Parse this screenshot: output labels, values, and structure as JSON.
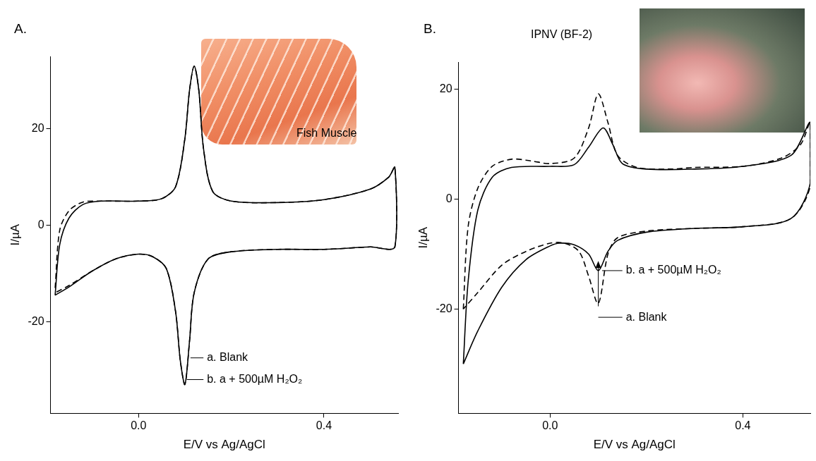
{
  "chart_data": [
    {
      "type": "line",
      "panel_label": "A.",
      "image_caption": "Fish Muscle",
      "x_label": "E/V vs Ag/AgCl",
      "y_label": "I/µA",
      "xlim": [
        -0.19,
        0.56
      ],
      "xticks": [
        {
          "value": 0,
          "label": "0.0"
        },
        {
          "value": 0.4,
          "label": "0.4"
        }
      ],
      "ylim": [
        -39,
        35
      ],
      "yticks": [
        -20,
        0,
        20
      ],
      "grid": false,
      "series": [
        {
          "name": "a. Blank",
          "color": "#000000",
          "line_style": "dashed",
          "x": [
            -0.18,
            -0.17,
            -0.15,
            -0.12,
            -0.08,
            0.0,
            0.05,
            0.08,
            0.1,
            0.11,
            0.12,
            0.13,
            0.14,
            0.16,
            0.2,
            0.3,
            0.4,
            0.5,
            0.54,
            0.553,
            0.553,
            0.5,
            0.4,
            0.3,
            0.2,
            0.15,
            0.12,
            0.11,
            0.1,
            0.09,
            0.08,
            0.06,
            0.03,
            0.0,
            -0.05,
            -0.1,
            -0.15,
            -0.18
          ],
          "values": [
            -13,
            -1,
            3,
            4.8,
            5,
            5,
            5.5,
            8,
            18,
            28,
            33,
            28,
            16,
            7,
            5,
            4.7,
            5.3,
            7.5,
            10,
            12,
            -4.5,
            -4.5,
            -5,
            -5,
            -5.5,
            -7,
            -14,
            -24,
            -33,
            -28,
            -18,
            -9,
            -6.5,
            -6,
            -7,
            -9.5,
            -12.5,
            -14
          ]
        },
        {
          "name": "b. a + 500µM H₂O₂",
          "color": "#000000",
          "line_style": "solid",
          "x": [
            -0.18,
            -0.17,
            -0.15,
            -0.12,
            -0.08,
            0.0,
            0.05,
            0.08,
            0.1,
            0.11,
            0.12,
            0.13,
            0.14,
            0.16,
            0.2,
            0.3,
            0.4,
            0.5,
            0.54,
            0.553,
            0.553,
            0.5,
            0.4,
            0.3,
            0.2,
            0.15,
            0.12,
            0.11,
            0.1,
            0.09,
            0.08,
            0.06,
            0.03,
            0.0,
            -0.05,
            -0.1,
            -0.15,
            -0.18
          ],
          "values": [
            -14.5,
            -4,
            1.5,
            4.3,
            5,
            5,
            5.5,
            8,
            18,
            28,
            33,
            28,
            16,
            7,
            5,
            4.7,
            5.3,
            7.5,
            10,
            12,
            -4.5,
            -4.5,
            -5,
            -5,
            -5.5,
            -7,
            -14,
            -24,
            -33,
            -28,
            -18,
            -9,
            -6.5,
            -6,
            -7,
            -9.5,
            -12.8,
            -14.5
          ]
        }
      ]
    },
    {
      "type": "line",
      "panel_label": "B.",
      "image_caption": "IPNV (BF-2)",
      "x_label": "E/V vs Ag/AgCl",
      "y_label": "I/µA",
      "xlim": [
        -0.19,
        0.54
      ],
      "xticks": [
        {
          "value": 0,
          "label": "0.0"
        },
        {
          "value": 0.4,
          "label": "0.4"
        }
      ],
      "ylim": [
        -39,
        25
      ],
      "yticks": [
        -20,
        0,
        20
      ],
      "grid": false,
      "series": [
        {
          "name": "a. Blank",
          "color": "#000000",
          "line_style": "dashed",
          "x": [
            -0.18,
            -0.17,
            -0.15,
            -0.12,
            -0.08,
            -0.04,
            0.0,
            0.05,
            0.08,
            0.1,
            0.12,
            0.14,
            0.18,
            0.25,
            0.3,
            0.4,
            0.48,
            0.52,
            0.54,
            0.54,
            0.5,
            0.4,
            0.3,
            0.2,
            0.14,
            0.12,
            0.1,
            0.08,
            0.06,
            0.03,
            0.0,
            -0.05,
            -0.1,
            -0.15,
            -0.18
          ],
          "values": [
            -20,
            -5,
            2,
            6,
            7.3,
            7,
            6.5,
            7.5,
            13,
            19.2,
            14,
            8,
            5.8,
            5.5,
            5.8,
            6,
            7.5,
            10,
            14,
            2.5,
            -3.5,
            -5,
            -5.3,
            -5.8,
            -7,
            -10,
            -19,
            -14,
            -9.5,
            -8,
            -8,
            -9.5,
            -12,
            -17,
            -20
          ]
        },
        {
          "name": "b. a + 500µM H₂O₂",
          "color": "#000000",
          "line_style": "solid",
          "x": [
            -0.18,
            -0.17,
            -0.15,
            -0.12,
            -0.08,
            0.0,
            0.05,
            0.08,
            0.11,
            0.13,
            0.15,
            0.2,
            0.3,
            0.4,
            0.5,
            0.54,
            0.54,
            0.5,
            0.4,
            0.3,
            0.2,
            0.14,
            0.12,
            0.1,
            0.08,
            0.05,
            0.02,
            0.0,
            -0.05,
            -0.1,
            -0.15,
            -0.18
          ],
          "values": [
            -30,
            -15,
            -2,
            4,
            5.8,
            6,
            6.3,
            9.5,
            13,
            10,
            6.5,
            5.5,
            5.5,
            6,
            8,
            14,
            3,
            -3.5,
            -5,
            -5.3,
            -6,
            -7.5,
            -9.5,
            -13,
            -10,
            -8.3,
            -8,
            -8.5,
            -11,
            -16,
            -24,
            -30
          ]
        }
      ]
    }
  ]
}
